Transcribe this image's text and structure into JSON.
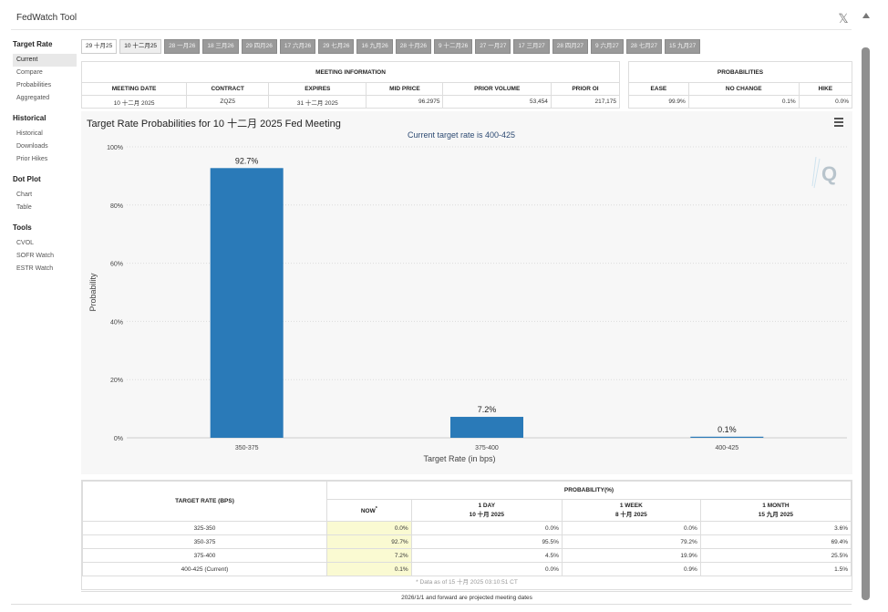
{
  "app": {
    "title": "FedWatch Tool"
  },
  "sidebar": {
    "sections": [
      {
        "heading": "Target Rate",
        "items": [
          "Current",
          "Compare",
          "Probabilities",
          "Aggregated"
        ]
      },
      {
        "heading": "Historical",
        "items": [
          "Historical",
          "Downloads",
          "Prior Hikes"
        ]
      },
      {
        "heading": "Dot Plot",
        "items": [
          "Chart",
          "Table"
        ]
      },
      {
        "heading": "Tools",
        "items": [
          "CVOL",
          "SOFR Watch",
          "ESTR Watch"
        ]
      }
    ],
    "active": "Current"
  },
  "tabs": [
    "29 十月25",
    "10 十二月25",
    "28 一月26",
    "18 三月26",
    "29 四月26",
    "17 六月26",
    "29 七月26",
    "16 九月26",
    "28 十月26",
    "9 十二月26",
    "27 一月27",
    "17 三月27",
    "28 四月27",
    "9 六月27",
    "28 七月27",
    "15 九月27"
  ],
  "meeting_info": {
    "heading": "MEETING INFORMATION",
    "columns": [
      "MEETING DATE",
      "CONTRACT",
      "EXPIRES",
      "MID PRICE",
      "PRIOR VOLUME",
      "PRIOR OI"
    ],
    "values": [
      "10 十二月 2025",
      "ZQZ5",
      "31 十二月 2025",
      "96.2975",
      "53,454",
      "217,175"
    ]
  },
  "probabilities": {
    "heading": "PROBABILITIES",
    "columns": [
      "EASE",
      "NO CHANGE",
      "HIKE"
    ],
    "values": [
      "99.9%",
      "0.1%",
      "0.0%"
    ]
  },
  "chart_data": {
    "type": "bar",
    "title": "Target Rate Probabilities for 10 十二月 2025 Fed Meeting",
    "subtitle": "Current target rate is 400-425",
    "categories": [
      "350-375",
      "375-400",
      "400-425"
    ],
    "values": [
      92.7,
      7.2,
      0.1
    ],
    "value_labels": [
      "92.7%",
      "7.2%",
      "0.1%"
    ],
    "xlabel": "Target Rate (in bps)",
    "ylabel": "Probability",
    "ylim": [
      0,
      100
    ],
    "yticks": [
      "0%",
      "20%",
      "40%",
      "60%",
      "80%",
      "100%"
    ],
    "grid": true,
    "bar_color": "#2a7ab8"
  },
  "bottom_table": {
    "col_target": "TARGET RATE (BPS)",
    "col_prob": "PROBABILITY(%)",
    "sub": [
      {
        "l1": "NOW",
        "l2": "",
        "star": "*"
      },
      {
        "l1": "1 DAY",
        "l2": "10 十月 2025",
        "star": ""
      },
      {
        "l1": "1 WEEK",
        "l2": "8 十月 2025",
        "star": ""
      },
      {
        "l1": "1 MONTH",
        "l2": "15 九月 2025",
        "star": ""
      }
    ],
    "rows": [
      [
        "325-350",
        "0.0%",
        "0.0%",
        "0.0%",
        "3.6%"
      ],
      [
        "350-375",
        "92.7%",
        "95.5%",
        "79.2%",
        "69.4%"
      ],
      [
        "375-400",
        "7.2%",
        "4.5%",
        "19.9%",
        "25.5%"
      ],
      [
        "400-425 (Current)",
        "0.1%",
        "0.0%",
        "0.9%",
        "1.5%"
      ]
    ],
    "note": "* Data as of 15 十月 2025 03:10:51 CT"
  },
  "footer": "2026/1/1 and forward are projected meeting dates"
}
